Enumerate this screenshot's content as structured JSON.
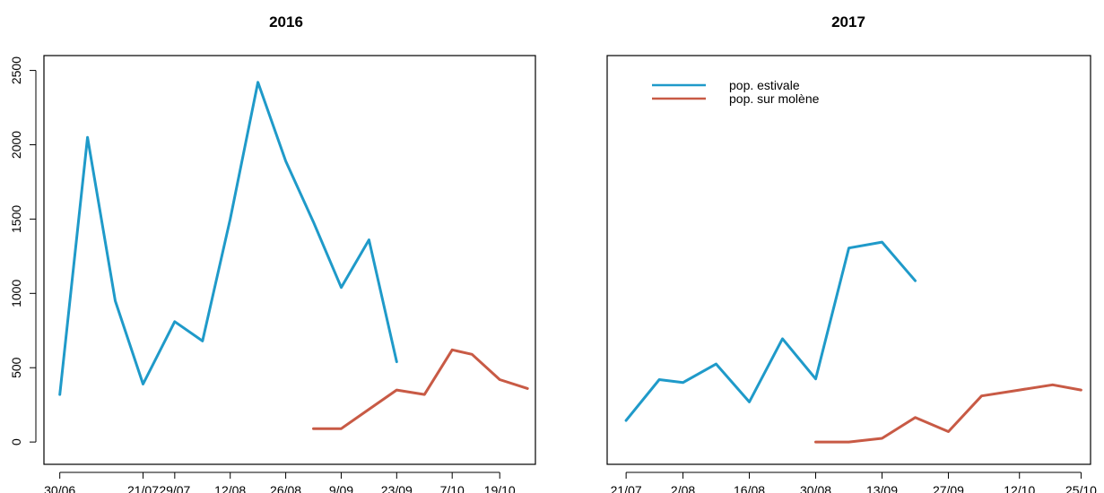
{
  "chart_data": [
    {
      "type": "line",
      "title": "2016",
      "xlabel": "",
      "ylabel": "",
      "ylim": [
        -150,
        2600
      ],
      "x_ticks": [
        "30/06",
        "21/07",
        "29/07",
        "12/08",
        "26/08",
        "9/09",
        "23/09",
        "7/10",
        "19/10"
      ],
      "y_ticks": [
        0,
        500,
        1000,
        1500,
        2000,
        2500
      ],
      "series": [
        {
          "color": "#1f9ac9",
          "points": [
            {
              "x": "30/06",
              "y": 320
            },
            {
              "x": "7/07",
              "y": 2050
            },
            {
              "x": "14/07",
              "y": 950
            },
            {
              "x": "21/07",
              "y": 390
            },
            {
              "x": "29/07",
              "y": 810
            },
            {
              "x": "5/08",
              "y": 680
            },
            {
              "x": "12/08",
              "y": 1500
            },
            {
              "x": "19/08",
              "y": 2420
            },
            {
              "x": "26/08",
              "y": 1890
            },
            {
              "x": "2/09",
              "y": 1480
            },
            {
              "x": "9/09",
              "y": 1040
            },
            {
              "x": "16/09",
              "y": 1360
            },
            {
              "x": "23/09",
              "y": 540
            }
          ]
        },
        {
          "color": "#c85a45",
          "points": [
            {
              "x": "2/09",
              "y": 90
            },
            {
              "x": "9/09",
              "y": 90
            },
            {
              "x": "16/09",
              "y": 220
            },
            {
              "x": "23/09",
              "y": 350
            },
            {
              "x": "30/09",
              "y": 320
            },
            {
              "x": "7/10",
              "y": 620
            },
            {
              "x": "12/10",
              "y": 590
            },
            {
              "x": "19/10",
              "y": 420
            },
            {
              "x": "26/10",
              "y": 360
            }
          ]
        }
      ]
    },
    {
      "type": "line",
      "title": "2017",
      "xlabel": "",
      "ylabel": "",
      "ylim": [
        -150,
        2600
      ],
      "x_ticks": [
        "21/07",
        "2/08",
        "16/08",
        "30/08",
        "13/09",
        "27/09",
        "12/10",
        "25/10"
      ],
      "legend": {
        "placement": "top-left",
        "entries": [
          {
            "label": "pop. estivale",
            "color": "#1f9ac9"
          },
          {
            "label": "pop. sur molène",
            "color": "#c85a45"
          }
        ]
      },
      "series": [
        {
          "name": "pop. estivale",
          "color": "#1f9ac9",
          "points": [
            {
              "x": "21/07",
              "y": 145
            },
            {
              "x": "28/07",
              "y": 420
            },
            {
              "x": "2/08",
              "y": 400
            },
            {
              "x": "9/08",
              "y": 525
            },
            {
              "x": "16/08",
              "y": 270
            },
            {
              "x": "23/08",
              "y": 695
            },
            {
              "x": "30/08",
              "y": 425
            },
            {
              "x": "6/09",
              "y": 1305
            },
            {
              "x": "13/09",
              "y": 1345
            },
            {
              "x": "20/09",
              "y": 1085
            }
          ]
        },
        {
          "name": "pop. sur molène",
          "color": "#c85a45",
          "points": [
            {
              "x": "30/08",
              "y": 0
            },
            {
              "x": "6/09",
              "y": 0
            },
            {
              "x": "13/09",
              "y": 25
            },
            {
              "x": "20/09",
              "y": 165
            },
            {
              "x": "27/09",
              "y": 70
            },
            {
              "x": "4/10",
              "y": 310
            },
            {
              "x": "12/10",
              "y": 350
            },
            {
              "x": "19/10",
              "y": 385
            },
            {
              "x": "25/10",
              "y": 350
            }
          ]
        }
      ]
    }
  ]
}
